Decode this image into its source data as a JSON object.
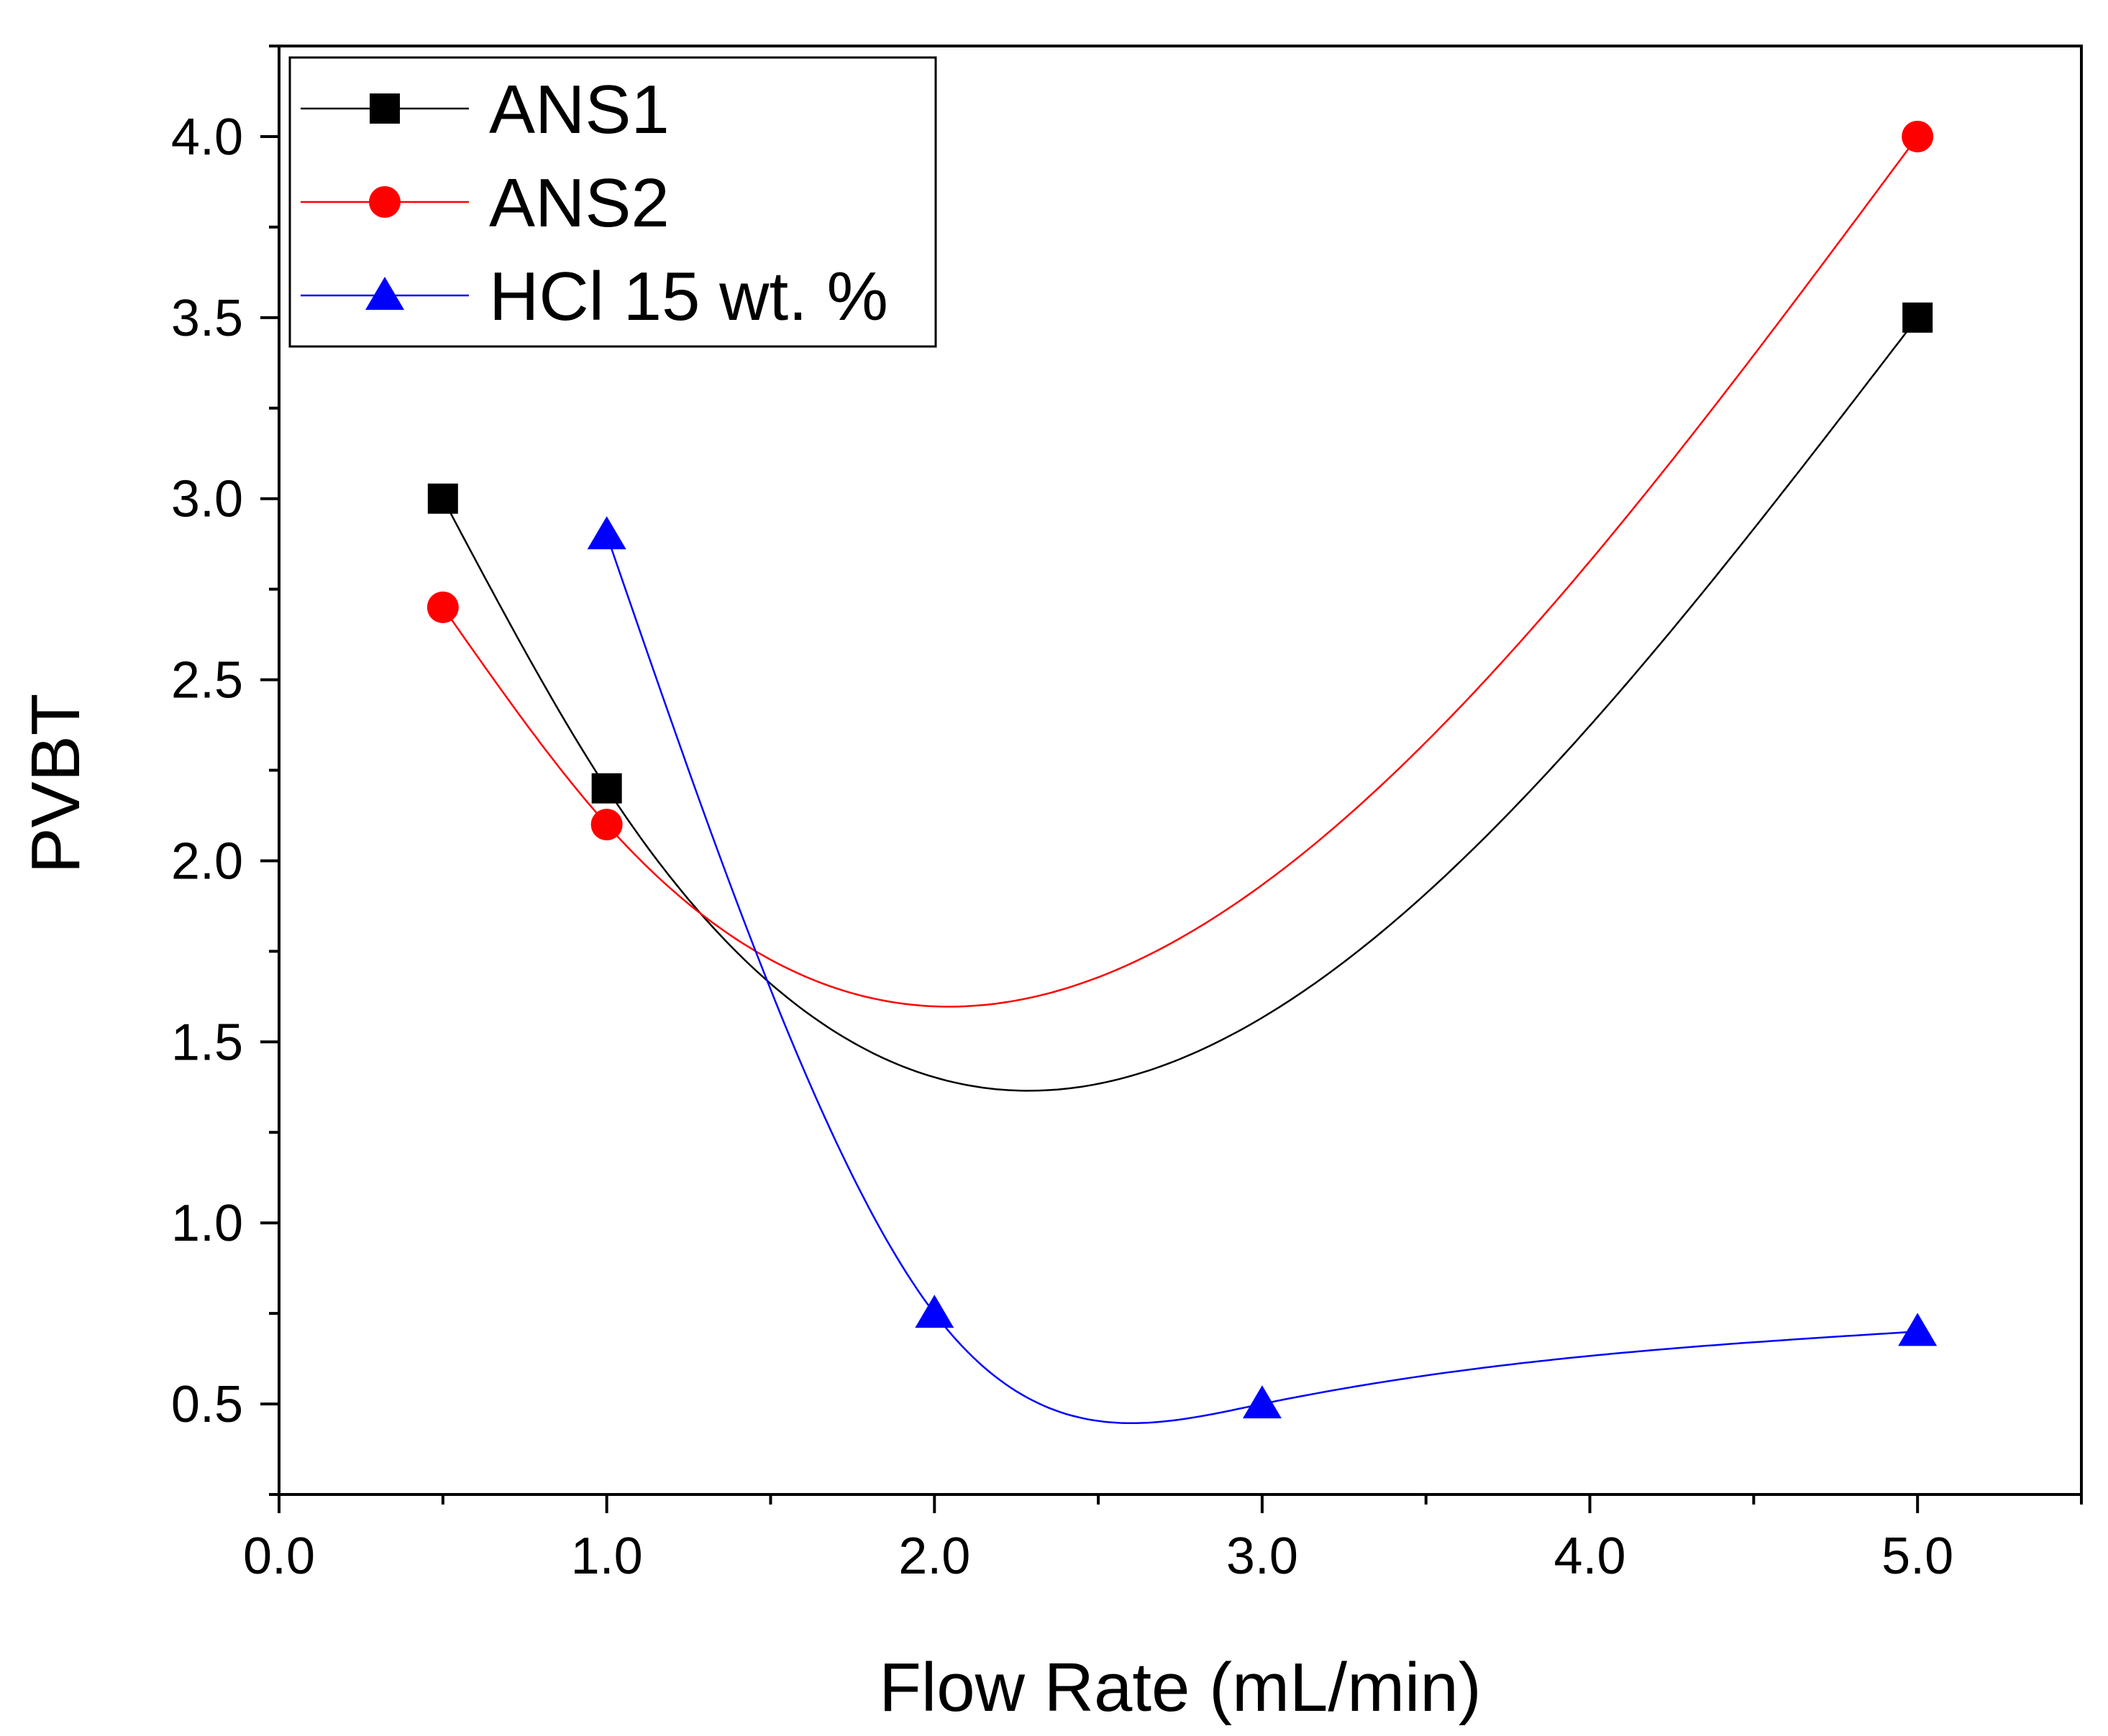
{
  "chart_data": {
    "type": "line",
    "title": "",
    "xlabel": "Flow Rate (mL/min)",
    "ylabel": "PVBT",
    "xlim": [
      0,
      5.5
    ],
    "ylim": [
      0.25,
      4.25
    ],
    "xticks": [
      0,
      1,
      2,
      3,
      4,
      5
    ],
    "xtick_labels": [
      "0.0",
      "1.0",
      "2.0",
      "3.0",
      "4.0",
      "5.0"
    ],
    "yticks": [
      0.5,
      1.0,
      1.5,
      2.0,
      2.5,
      3.0,
      3.5,
      4.0
    ],
    "ytick_labels": [
      "0.5",
      "1.0",
      "1.5",
      "2.0",
      "2.5",
      "3.0",
      "3.5",
      "4.0"
    ],
    "grid": false,
    "legend_position": "top-left",
    "series": [
      {
        "name": "ANS1",
        "color": "#000000",
        "marker": "square",
        "x": [
          0.5,
          1.0,
          5.0
        ],
        "y": [
          3.0,
          2.2,
          3.5
        ]
      },
      {
        "name": "ANS2",
        "color": "#ff0000",
        "marker": "circle",
        "x": [
          0.5,
          1.0,
          5.0
        ],
        "y": [
          2.7,
          2.1,
          4.0
        ]
      },
      {
        "name": "HCl 15 wt. %",
        "color": "#0000ff",
        "marker": "triangle",
        "x": [
          1.0,
          2.0,
          3.0,
          5.0
        ],
        "y": [
          2.9,
          0.75,
          0.5,
          0.7
        ]
      }
    ]
  }
}
